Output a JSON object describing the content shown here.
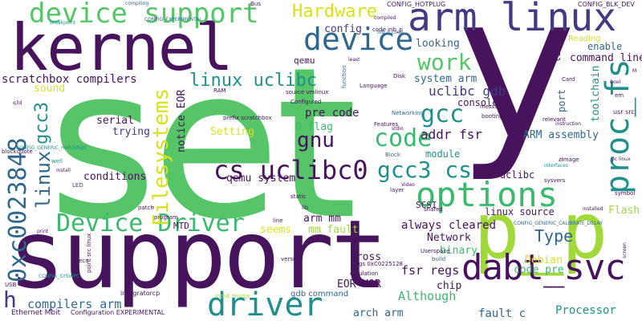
{
  "palette": {
    "deep_purple": "#46135c",
    "indigo": "#433a83",
    "blue": "#30678d",
    "teal": "#21908d",
    "green": "#3ab96f",
    "bright_green": "#55c568",
    "lime": "#a2d93a",
    "yellow": "#d8e219",
    "background": "#ffffff"
  },
  "words": [
    "set",
    "support",
    "y",
    "kernel",
    "p_p",
    "dabt_svc",
    "device support",
    "arm linux",
    "device",
    "options",
    "driver",
    "Device Driver",
    "cs uclibc0",
    "0xc0023848",
    "Filesystems",
    "proc_fs",
    "Hardware",
    "work",
    "code",
    "gcc",
    "gcc3",
    "gcc3 cs",
    "gnu",
    "linux uclibc",
    "linux",
    "h",
    "system arm",
    "uclibc gdb",
    "command line",
    "scratchbox compilers",
    "sound",
    "O flag",
    "toolchain",
    "addr fsr",
    "ARM assembly",
    "serial",
    "trying",
    "Setting",
    "notice EOR",
    "pre code",
    "qemu system",
    "conditions",
    "arm mm",
    "mm fault",
    "seems",
    "always cleared",
    "Type",
    "binary",
    "Network",
    "Debian",
    "cross",
    "fsr regs",
    "code pre",
    "compilers arm",
    "EOR XOR",
    "chip",
    "Although",
    "arch arm",
    "Processor",
    "fault c",
    "Flash",
    "config",
    "looking",
    "enable",
    "console",
    "module",
    "li li",
    "port",
    "arm uclibc",
    "linux source",
    "qemu",
    "SCSI",
    "MTD",
    "LED",
    "well",
    "gdb command",
    "Ethernet Mbit",
    "Configuration EXPERIMENTAL",
    "integratorcp",
    "regs 0xC0225128",
    "build",
    "emulation",
    "point src linux",
    "Input device",
    "breakpoint",
    "compiling",
    "CONFIG_EXPERIMENTAL",
    "CONFIG_GENERIC_CALIBRATE_DELAY",
    "CONFIG_GENERIC_HARDIRQS",
    "CONFIG_SYSVIPC",
    "CONFIG_HOTPLUG",
    "CONFIG_BLK_DEV",
    "prefix scratchbox",
    "code inb_p",
    "inb_p code",
    "compiled",
    "source vmlinux",
    "Configured",
    "Networking",
    "message",
    "booting",
    "Block",
    "zImage",
    "interfaces",
    "symbol",
    "Userspace",
    "shared",
    "Video",
    "RAM",
    "static",
    "lib",
    "layer",
    "line",
    "specs",
    "version",
    "USB",
    "print",
    "install",
    "patch",
    "program",
    "function",
    "Disk",
    "Language",
    "Features",
    "stdio",
    "Bus",
    "pc linux",
    "Card",
    "installed",
    "screen",
    "instruction",
    "relevant",
    "least",
    "q3d",
    "blockquote",
    "Reading",
    "far",
    "M",
    "em",
    "Bool",
    "usr src",
    "sysvers",
    "li ul",
    "File systems"
  ]
}
